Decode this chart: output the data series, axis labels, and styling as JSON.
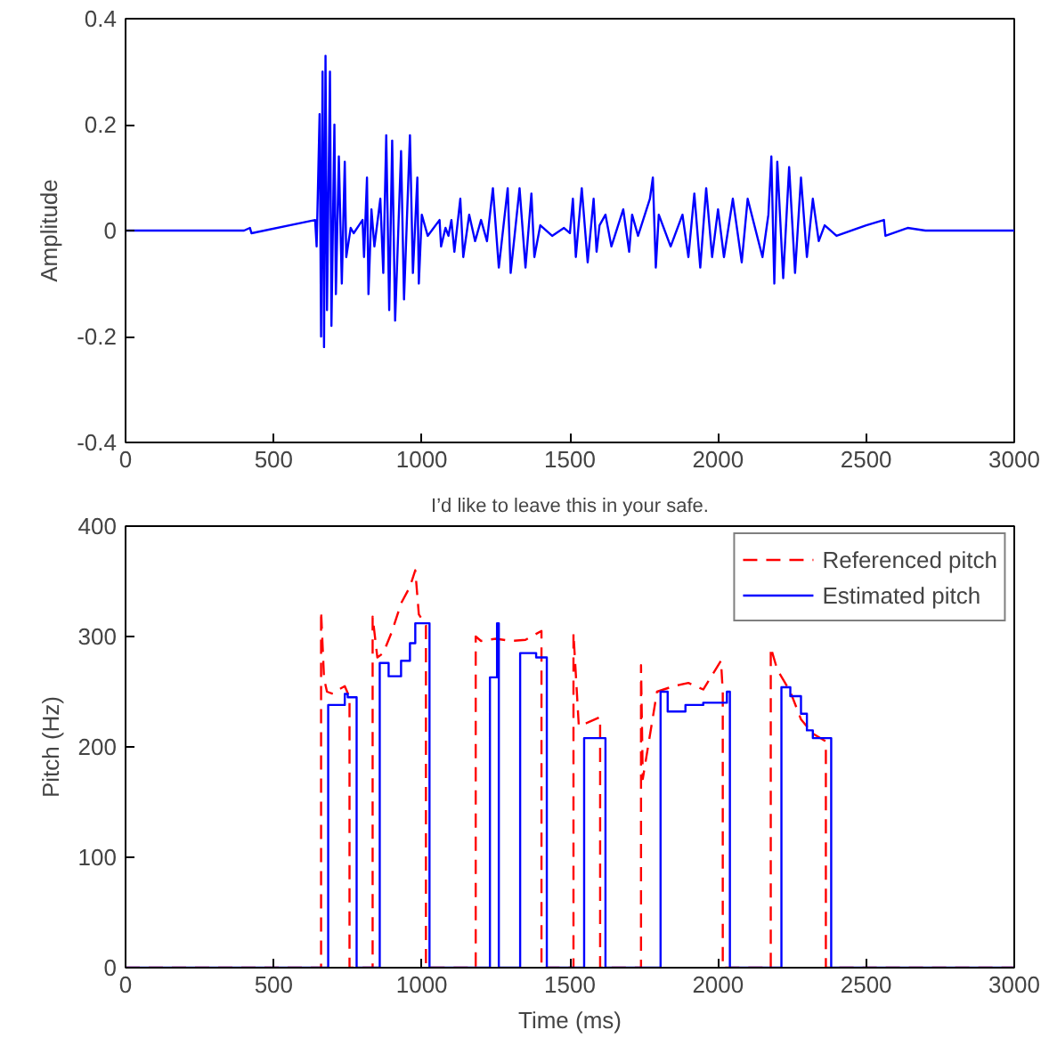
{
  "chart_data": [
    {
      "type": "line",
      "ylabel": "Amplitude",
      "xlim": [
        0,
        3000
      ],
      "ylim": [
        -0.4,
        0.4
      ],
      "xticks": [
        0,
        500,
        1000,
        1500,
        2000,
        2500,
        3000
      ],
      "yticks": [
        -0.4,
        -0.2,
        0,
        0.2,
        0.4
      ],
      "grid": false,
      "legend": false,
      "marker": "none",
      "series": [
        {
          "color": "#0000ff",
          "line_style": "solid",
          "x": [
            0,
            400,
            420,
            425,
            640,
            645,
            655,
            660,
            665,
            670,
            675,
            680,
            690,
            695,
            705,
            710,
            720,
            730,
            740,
            745,
            760,
            770,
            800,
            805,
            815,
            820,
            830,
            840,
            860,
            870,
            880,
            890,
            900,
            910,
            930,
            940,
            960,
            970,
            985,
            990,
            1000,
            1020,
            1060,
            1065,
            1080,
            1090,
            1100,
            1110,
            1130,
            1140,
            1160,
            1180,
            1200,
            1220,
            1240,
            1260,
            1290,
            1300,
            1330,
            1350,
            1370,
            1380,
            1400,
            1440,
            1480,
            1500,
            1510,
            1520,
            1540,
            1560,
            1580,
            1590,
            1600,
            1620,
            1640,
            1680,
            1700,
            1710,
            1730,
            1770,
            1780,
            1790,
            1800,
            1840,
            1880,
            1900,
            1920,
            1940,
            1960,
            1980,
            2000,
            2020,
            2050,
            2080,
            2100,
            2150,
            2170,
            2180,
            2190,
            2200,
            2220,
            2240,
            2260,
            2280,
            2300,
            2320,
            2340,
            2360,
            2400,
            2500,
            2560,
            2565,
            2640,
            2700,
            3000
          ],
          "values": [
            0,
            0,
            0.005,
            -0.005,
            0.02,
            -0.03,
            0.22,
            -0.2,
            0.3,
            -0.22,
            0.33,
            -0.15,
            0.3,
            -0.18,
            0.2,
            -0.12,
            0.14,
            -0.1,
            0.13,
            -0.05,
            0.005,
            -0.005,
            0.02,
            -0.05,
            0.1,
            -0.12,
            0.04,
            -0.03,
            0.06,
            -0.08,
            0.18,
            -0.15,
            0.17,
            -0.17,
            0.15,
            -0.13,
            0.18,
            -0.08,
            0.1,
            -0.1,
            0.03,
            -0.01,
            0.02,
            -0.03,
            0.005,
            -0.01,
            0.02,
            -0.04,
            0.06,
            -0.05,
            0.03,
            -0.02,
            0.02,
            -0.02,
            0.08,
            -0.07,
            0.08,
            -0.08,
            0.08,
            -0.07,
            0.07,
            -0.05,
            0.01,
            -0.01,
            0.005,
            -0.005,
            0.06,
            -0.05,
            0.08,
            -0.06,
            0.06,
            -0.04,
            0.01,
            0.03,
            -0.03,
            0.04,
            -0.04,
            0.03,
            -0.01,
            0.06,
            0.1,
            -0.07,
            0.03,
            -0.03,
            0.03,
            -0.05,
            0.07,
            -0.07,
            0.08,
            -0.05,
            0.04,
            -0.05,
            0.06,
            -0.06,
            0.06,
            -0.05,
            0.03,
            0.14,
            -0.1,
            0.13,
            -0.09,
            0.12,
            -0.08,
            0.1,
            -0.05,
            0.06,
            -0.02,
            0.01,
            -0.01,
            0.01,
            0.02,
            -0.01,
            0.005,
            0,
            0
          ]
        }
      ]
    },
    {
      "type": "line",
      "title": "I’d like to leave this in your safe.",
      "xlabel": "Time (ms)",
      "ylabel": "Pitch (Hz)",
      "xlim": [
        0,
        3000
      ],
      "ylim": [
        0,
        400
      ],
      "xticks": [
        0,
        500,
        1000,
        1500,
        2000,
        2500,
        3000
      ],
      "yticks": [
        0,
        100,
        200,
        300,
        400
      ],
      "grid": false,
      "legend": "top right",
      "marker": "none",
      "series": [
        {
          "name": "Referenced pitch",
          "color": "#ff0000",
          "line_style": "dashed",
          "x": [
            0,
            660,
            660,
            670,
            680,
            700,
            720,
            740,
            756,
            756,
            834,
            834,
            850,
            870,
            900,
            930,
            960,
            978,
            990,
            1014,
            1014,
            1182,
            1182,
            1200,
            1250,
            1300,
            1350,
            1404,
            1404,
            1512,
            1512,
            1530,
            1560,
            1602,
            1602,
            1740,
            1740,
            1746,
            1794,
            1850,
            1900,
            1950,
            2010,
            2016,
            2016,
            2178,
            2178,
            2200,
            2244,
            2280,
            2320,
            2364,
            2364,
            3000
          ],
          "values": [
            0,
            0,
            323,
            262,
            250,
            248,
            252,
            255,
            245,
            0,
            0,
            318,
            281,
            285,
            305,
            330,
            345,
            360,
            320,
            310,
            0,
            0,
            300,
            296,
            298,
            296,
            297,
            305,
            0,
            0,
            303,
            219,
            222,
            227,
            0,
            0,
            274,
            171,
            250,
            255,
            258,
            252,
            278,
            250,
            0,
            0,
            290,
            270,
            250,
            225,
            212,
            205,
            0,
            0
          ]
        },
        {
          "name": "Estimated pitch",
          "color": "#0000ff",
          "line_style": "solid",
          "x": [
            0,
            684,
            684,
            740,
            740,
            750,
            750,
            780,
            780,
            858,
            858,
            888,
            888,
            930,
            930,
            960,
            960,
            978,
            978,
            1026,
            1026,
            1230,
            1230,
            1254,
            1254,
            1260,
            1260,
            1332,
            1332,
            1386,
            1386,
            1422,
            1422,
            1548,
            1548,
            1620,
            1620,
            1806,
            1806,
            1830,
            1830,
            1890,
            1890,
            1950,
            1950,
            2030,
            2030,
            2040,
            2040,
            2214,
            2214,
            2244,
            2244,
            2280,
            2280,
            2300,
            2300,
            2320,
            2320,
            2382,
            2382,
            3000
          ],
          "values": [
            0,
            0,
            238,
            238,
            248,
            248,
            245,
            245,
            0,
            0,
            276,
            276,
            264,
            264,
            278,
            278,
            294,
            294,
            312,
            312,
            0,
            0,
            263,
            263,
            312,
            312,
            0,
            0,
            285,
            285,
            281,
            281,
            0,
            0,
            208,
            208,
            0,
            0,
            250,
            250,
            232,
            232,
            238,
            238,
            240,
            240,
            250,
            250,
            0,
            0,
            254,
            254,
            246,
            246,
            230,
            230,
            215,
            215,
            208,
            208,
            0,
            0
          ]
        }
      ]
    }
  ]
}
